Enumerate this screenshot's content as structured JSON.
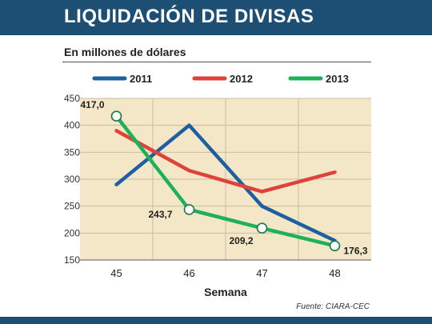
{
  "header": {
    "title": "LIQUIDACIÓN DE DIVISAS"
  },
  "subtitle": "En millones de dólares",
  "source": "Fuente: CIARA-CEC",
  "chart_data": {
    "type": "line",
    "xlabel": "Semana",
    "ylabel": "",
    "categories": [
      "45",
      "46",
      "47",
      "48"
    ],
    "yticks": [
      150,
      200,
      250,
      300,
      350,
      400,
      450
    ],
    "ylim": [
      150,
      450
    ],
    "grid": true,
    "legend": "top",
    "series": [
      {
        "name": "2011",
        "color": "#1d5fa0",
        "values": [
          290,
          400,
          250,
          186
        ]
      },
      {
        "name": "2012",
        "color": "#e0413a",
        "values": [
          390,
          316,
          277,
          313
        ]
      },
      {
        "name": "2013",
        "color": "#1eb05a",
        "values": [
          417.0,
          243.7,
          209.2,
          176.3
        ],
        "point_labels": [
          "417,0",
          "243,7",
          "209,2",
          "176,3"
        ]
      }
    ]
  }
}
